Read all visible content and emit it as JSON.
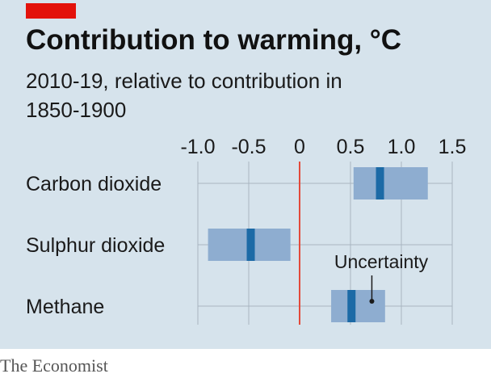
{
  "chart_data": {
    "type": "bar",
    "title": "Contribution to warming, °C",
    "subtitle": "2010-19, relative to contribution in 1850-1900",
    "xlim": [
      -1.0,
      1.5
    ],
    "ticks": [
      -1.0,
      -0.5,
      0,
      0.5,
      1.0,
      1.5
    ],
    "tick_labels": [
      "-1.0",
      "-0.5",
      "0",
      "0.5",
      "1.0",
      "1.5"
    ],
    "reference_line": 0,
    "grid": true,
    "categories": [
      "Carbon dioxide",
      "Sulphur dioxide",
      "Methane"
    ],
    "series": [
      {
        "central": 0.79,
        "low": 0.53,
        "high": 1.26
      },
      {
        "central": -0.48,
        "low": -0.9,
        "high": -0.09
      },
      {
        "central": 0.51,
        "low": 0.31,
        "high": 0.84
      }
    ],
    "annotation": {
      "text": "Uncertainty",
      "category": "Methane",
      "x": 0.71
    }
  },
  "colors": {
    "background": "#d6e3ec",
    "range": "#8eadd0",
    "central": "#1c6aa6",
    "zero_line": "#e34a3a",
    "grid": "#a9b6c1"
  },
  "source": "The Economist"
}
